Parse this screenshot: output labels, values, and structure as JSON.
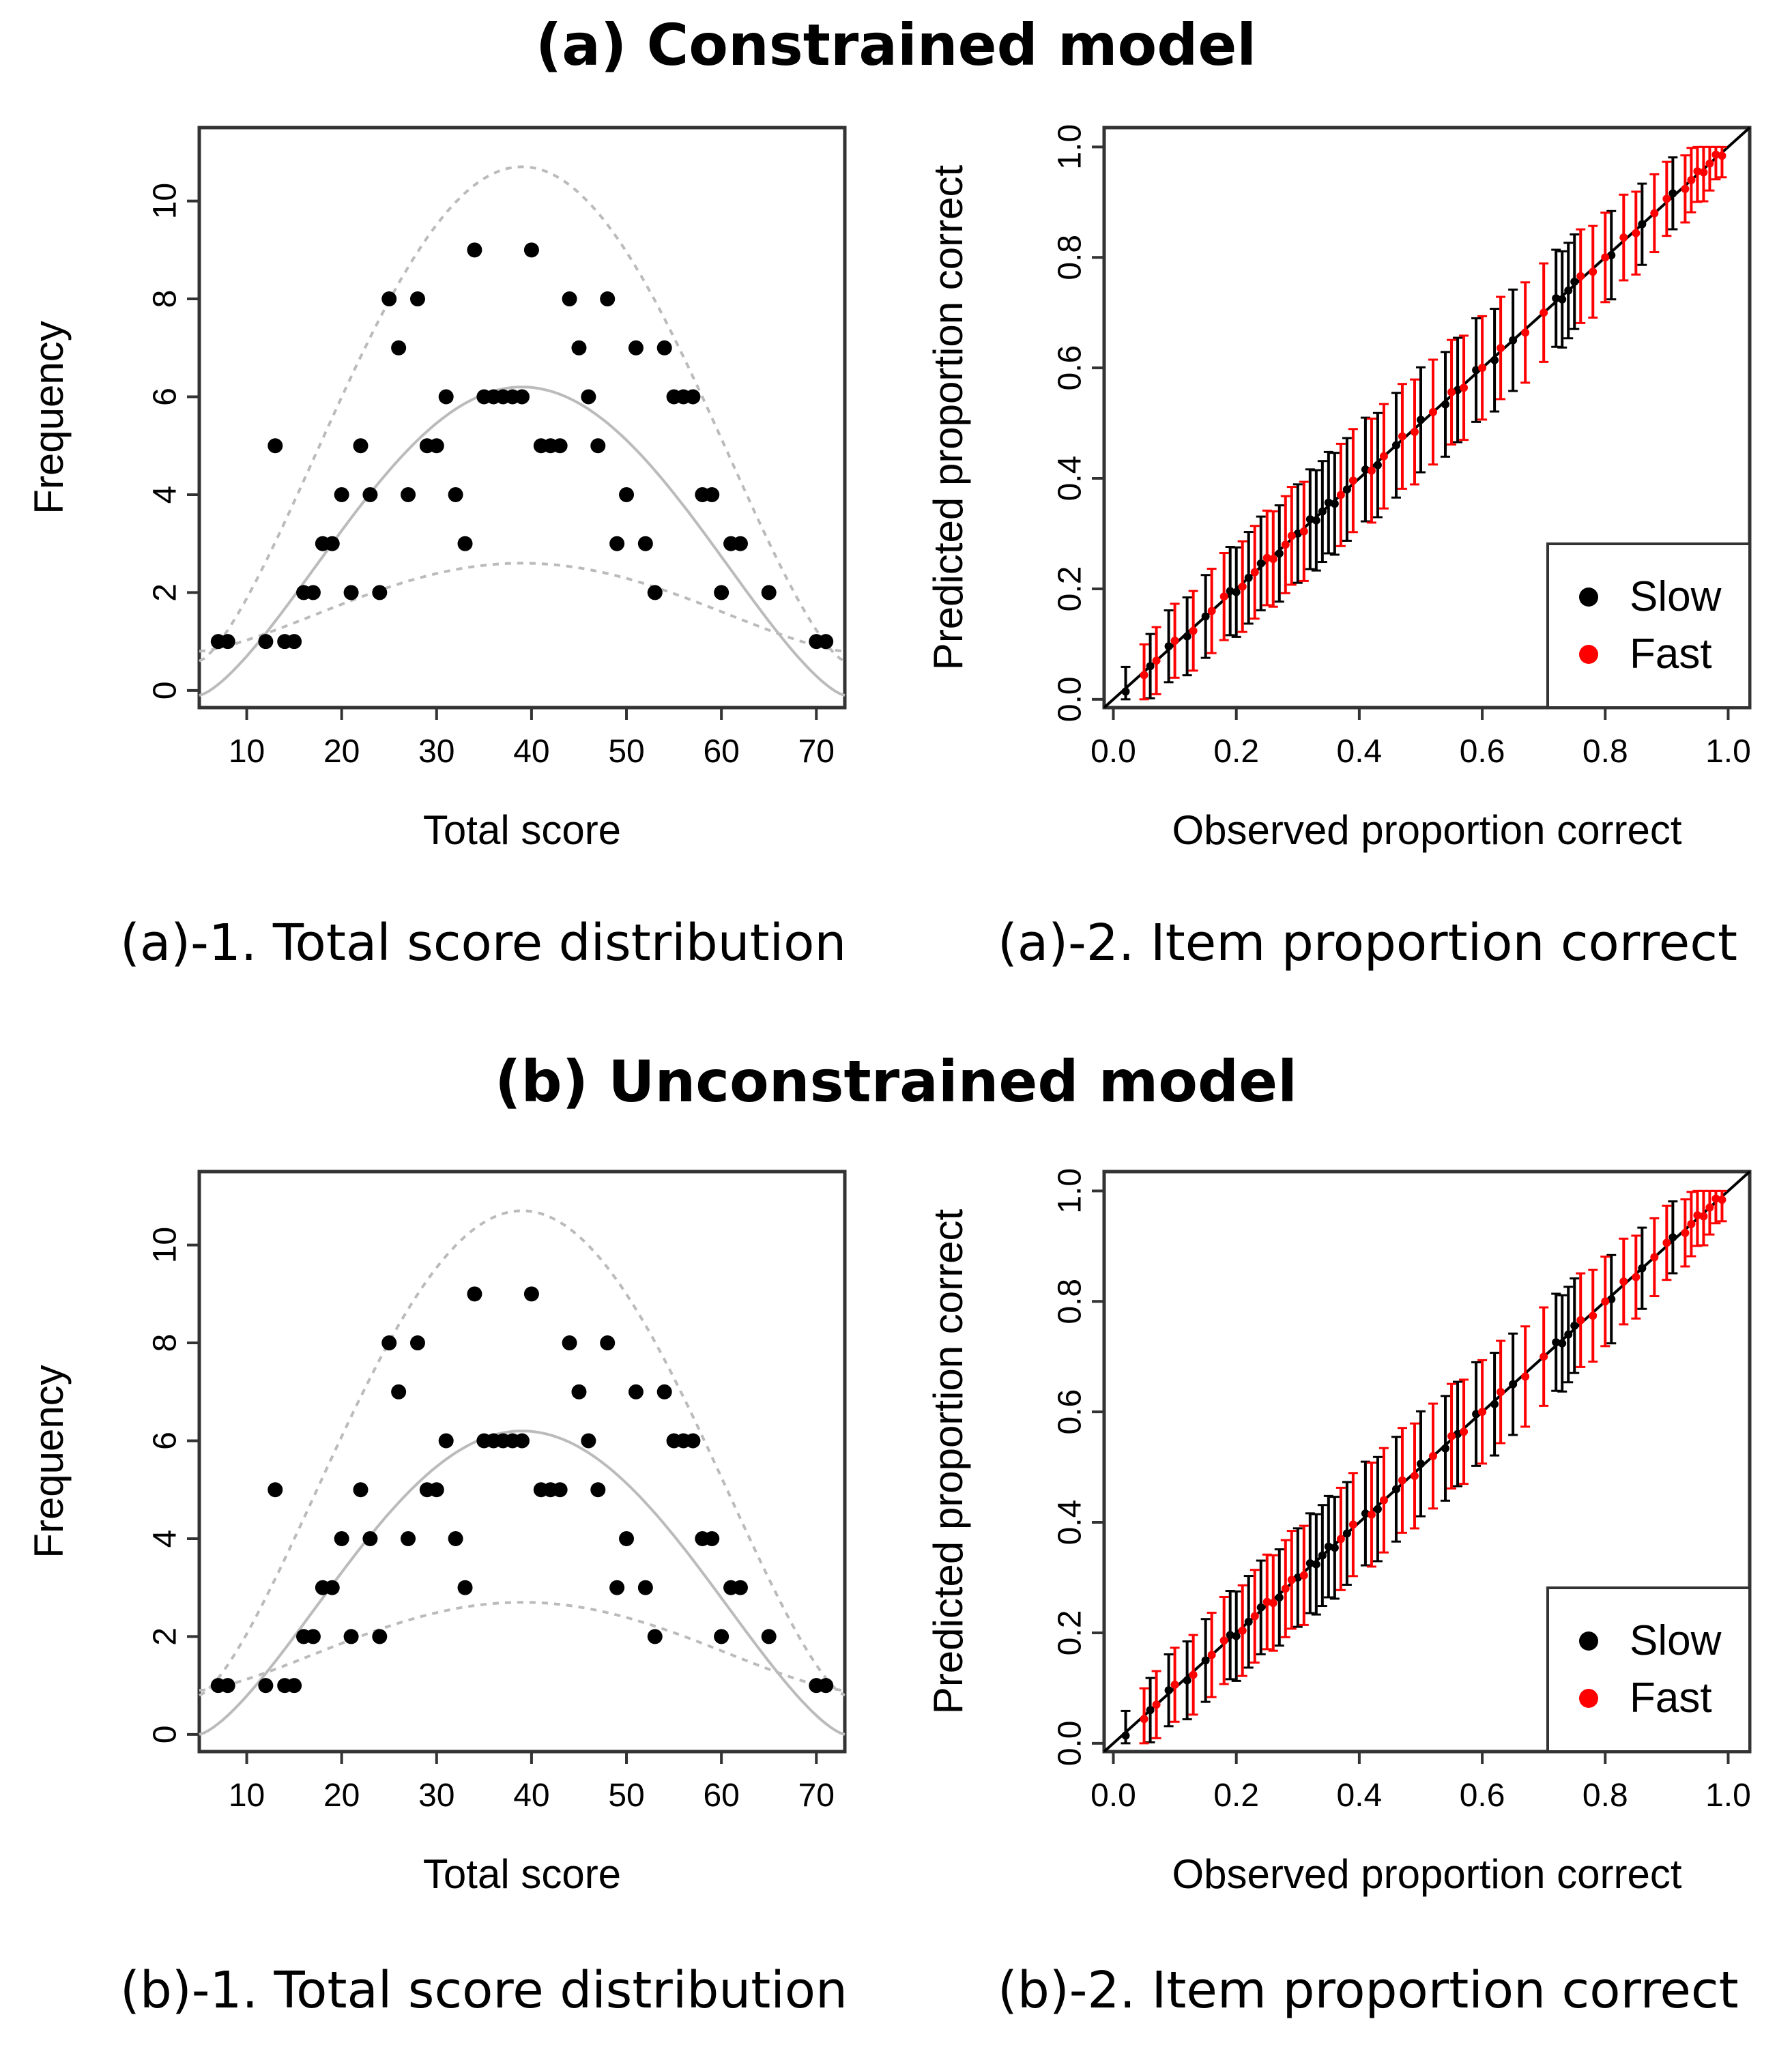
{
  "sections": [
    {
      "title": "(a) Constrained model",
      "caption_left": "(a)-1. Total score distribution",
      "caption_right": "(a)-2. Item proportion correct"
    },
    {
      "title": "(b) Unconstrained model",
      "caption_left": "(b)-1. Total score distribution",
      "caption_right": "(b)-2. Item proportion correct"
    }
  ],
  "chart_data": [
    {
      "id": "a1",
      "type": "scatter",
      "xlabel": "Total score",
      "ylabel": "Frequency",
      "xlim": [
        5,
        73
      ],
      "ylim": [
        -0.35,
        11.5
      ],
      "xticks": [
        10,
        20,
        30,
        40,
        50,
        60,
        70
      ],
      "yticks": [
        0,
        2,
        4,
        6,
        8,
        10
      ],
      "reference": {
        "mean_peak": 6.2,
        "upper_peak": 10.7,
        "lower_peak": 2.6,
        "center": 39,
        "mean_end": -0.1,
        "upper_end": 0.6,
        "lower_end": 0.8
      },
      "points": [
        [
          7,
          1
        ],
        [
          8,
          1
        ],
        [
          12,
          1
        ],
        [
          13,
          5
        ],
        [
          14,
          1
        ],
        [
          15,
          1
        ],
        [
          16,
          2
        ],
        [
          17,
          2
        ],
        [
          18,
          3
        ],
        [
          19,
          3
        ],
        [
          20,
          4
        ],
        [
          21,
          2
        ],
        [
          22,
          5
        ],
        [
          23,
          4
        ],
        [
          24,
          2
        ],
        [
          25,
          8
        ],
        [
          26,
          7
        ],
        [
          27,
          4
        ],
        [
          28,
          8
        ],
        [
          29,
          5
        ],
        [
          30,
          5
        ],
        [
          31,
          6
        ],
        [
          32,
          4
        ],
        [
          33,
          3
        ],
        [
          34,
          9
        ],
        [
          35,
          6
        ],
        [
          36,
          6
        ],
        [
          37,
          6
        ],
        [
          38,
          6
        ],
        [
          39,
          6
        ],
        [
          40,
          9
        ],
        [
          41,
          5
        ],
        [
          42,
          5
        ],
        [
          43,
          5
        ],
        [
          44,
          8
        ],
        [
          45,
          7
        ],
        [
          46,
          6
        ],
        [
          47,
          5
        ],
        [
          48,
          8
        ],
        [
          49,
          3
        ],
        [
          50,
          4
        ],
        [
          51,
          7
        ],
        [
          52,
          3
        ],
        [
          53,
          2
        ],
        [
          54,
          7
        ],
        [
          55,
          6
        ],
        [
          56,
          6
        ],
        [
          57,
          6
        ],
        [
          58,
          4
        ],
        [
          59,
          4
        ],
        [
          60,
          2
        ],
        [
          61,
          3
        ],
        [
          62,
          3
        ],
        [
          65,
          2
        ],
        [
          70,
          1
        ],
        [
          71,
          1
        ]
      ]
    },
    {
      "id": "a2",
      "type": "scatter",
      "xlabel": "Observed proportion correct",
      "ylabel": "Predicted proportion correct",
      "xlim": [
        -0.015,
        1.035
      ],
      "ylim": [
        -0.015,
        1.035
      ],
      "xticks": [
        "0.0",
        "0.2",
        "0.4",
        "0.6",
        "0.8",
        "1.0"
      ],
      "yticks": [
        "0.0",
        "0.2",
        "0.4",
        "0.6",
        "0.8",
        "1.0"
      ],
      "legend": [
        {
          "label": "Slow",
          "color": "#000000"
        },
        {
          "label": "Fast",
          "color": "#ff0000"
        }
      ],
      "legend_position": "bottom-right",
      "identity_line": true,
      "series": [
        {
          "name": "Slow",
          "color": "#000000",
          "x": [
            0.02,
            0.06,
            0.09,
            0.12,
            0.15,
            0.19,
            0.2,
            0.22,
            0.24,
            0.27,
            0.3,
            0.32,
            0.33,
            0.34,
            0.35,
            0.36,
            0.38,
            0.41,
            0.43,
            0.46,
            0.5,
            0.54,
            0.56,
            0.59,
            0.62,
            0.65,
            0.72,
            0.73,
            0.74,
            0.75,
            0.81,
            0.86,
            0.91
          ]
        },
        {
          "name": "Fast",
          "color": "#ff0000",
          "x": [
            0.05,
            0.07,
            0.1,
            0.13,
            0.16,
            0.18,
            0.21,
            0.23,
            0.25,
            0.26,
            0.28,
            0.29,
            0.31,
            0.37,
            0.39,
            0.42,
            0.44,
            0.47,
            0.49,
            0.52,
            0.55,
            0.57,
            0.6,
            0.63,
            0.67,
            0.7,
            0.76,
            0.78,
            0.8,
            0.83,
            0.85,
            0.88,
            0.9,
            0.93,
            0.94,
            0.95,
            0.96,
            0.97,
            0.98,
            0.99
          ]
        }
      ]
    },
    {
      "id": "b1",
      "type": "scatter",
      "xlabel": "Total score",
      "ylabel": "Frequency",
      "xlim": [
        5,
        73
      ],
      "ylim": [
        -0.35,
        11.5
      ],
      "xticks": [
        10,
        20,
        30,
        40,
        50,
        60,
        70
      ],
      "yticks": [
        0,
        2,
        4,
        6,
        8,
        10
      ],
      "reference": {
        "mean_peak": 6.2,
        "upper_peak": 10.7,
        "lower_peak": 2.7,
        "center": 39,
        "mean_end": 0.0,
        "upper_end": 0.8,
        "lower_end": 0.9
      },
      "points": [
        [
          7,
          1
        ],
        [
          8,
          1
        ],
        [
          12,
          1
        ],
        [
          13,
          5
        ],
        [
          14,
          1
        ],
        [
          15,
          1
        ],
        [
          16,
          2
        ],
        [
          17,
          2
        ],
        [
          18,
          3
        ],
        [
          19,
          3
        ],
        [
          20,
          4
        ],
        [
          21,
          2
        ],
        [
          22,
          5
        ],
        [
          23,
          4
        ],
        [
          24,
          2
        ],
        [
          25,
          8
        ],
        [
          26,
          7
        ],
        [
          27,
          4
        ],
        [
          28,
          8
        ],
        [
          29,
          5
        ],
        [
          30,
          5
        ],
        [
          31,
          6
        ],
        [
          32,
          4
        ],
        [
          33,
          3
        ],
        [
          34,
          9
        ],
        [
          35,
          6
        ],
        [
          36,
          6
        ],
        [
          37,
          6
        ],
        [
          38,
          6
        ],
        [
          39,
          6
        ],
        [
          40,
          9
        ],
        [
          41,
          5
        ],
        [
          42,
          5
        ],
        [
          43,
          5
        ],
        [
          44,
          8
        ],
        [
          45,
          7
        ],
        [
          46,
          6
        ],
        [
          47,
          5
        ],
        [
          48,
          8
        ],
        [
          49,
          3
        ],
        [
          50,
          4
        ],
        [
          51,
          7
        ],
        [
          52,
          3
        ],
        [
          53,
          2
        ],
        [
          54,
          7
        ],
        [
          55,
          6
        ],
        [
          56,
          6
        ],
        [
          57,
          6
        ],
        [
          58,
          4
        ],
        [
          59,
          4
        ],
        [
          60,
          2
        ],
        [
          61,
          3
        ],
        [
          62,
          3
        ],
        [
          65,
          2
        ],
        [
          70,
          1
        ],
        [
          71,
          1
        ]
      ]
    },
    {
      "id": "b2",
      "type": "scatter",
      "xlabel": "Observed proportion correct",
      "ylabel": "Predicted proportion correct",
      "xlim": [
        -0.015,
        1.035
      ],
      "ylim": [
        -0.015,
        1.035
      ],
      "xticks": [
        "0.0",
        "0.2",
        "0.4",
        "0.6",
        "0.8",
        "1.0"
      ],
      "yticks": [
        "0.0",
        "0.2",
        "0.4",
        "0.6",
        "0.8",
        "1.0"
      ],
      "legend": [
        {
          "label": "Slow",
          "color": "#000000"
        },
        {
          "label": "Fast",
          "color": "#ff0000"
        }
      ],
      "legend_position": "bottom-right",
      "identity_line": true,
      "series": [
        {
          "name": "Slow",
          "color": "#000000",
          "x": [
            0.02,
            0.06,
            0.09,
            0.12,
            0.15,
            0.19,
            0.2,
            0.22,
            0.24,
            0.27,
            0.3,
            0.32,
            0.33,
            0.34,
            0.35,
            0.36,
            0.38,
            0.41,
            0.43,
            0.46,
            0.5,
            0.54,
            0.56,
            0.59,
            0.62,
            0.65,
            0.72,
            0.73,
            0.74,
            0.75,
            0.81,
            0.86,
            0.91
          ]
        },
        {
          "name": "Fast",
          "color": "#ff0000",
          "x": [
            0.05,
            0.07,
            0.1,
            0.13,
            0.16,
            0.18,
            0.21,
            0.23,
            0.25,
            0.26,
            0.28,
            0.29,
            0.31,
            0.37,
            0.39,
            0.42,
            0.44,
            0.47,
            0.49,
            0.52,
            0.55,
            0.57,
            0.6,
            0.63,
            0.67,
            0.7,
            0.76,
            0.78,
            0.8,
            0.83,
            0.85,
            0.88,
            0.9,
            0.93,
            0.94,
            0.95,
            0.96,
            0.97,
            0.98,
            0.99
          ]
        }
      ]
    }
  ]
}
